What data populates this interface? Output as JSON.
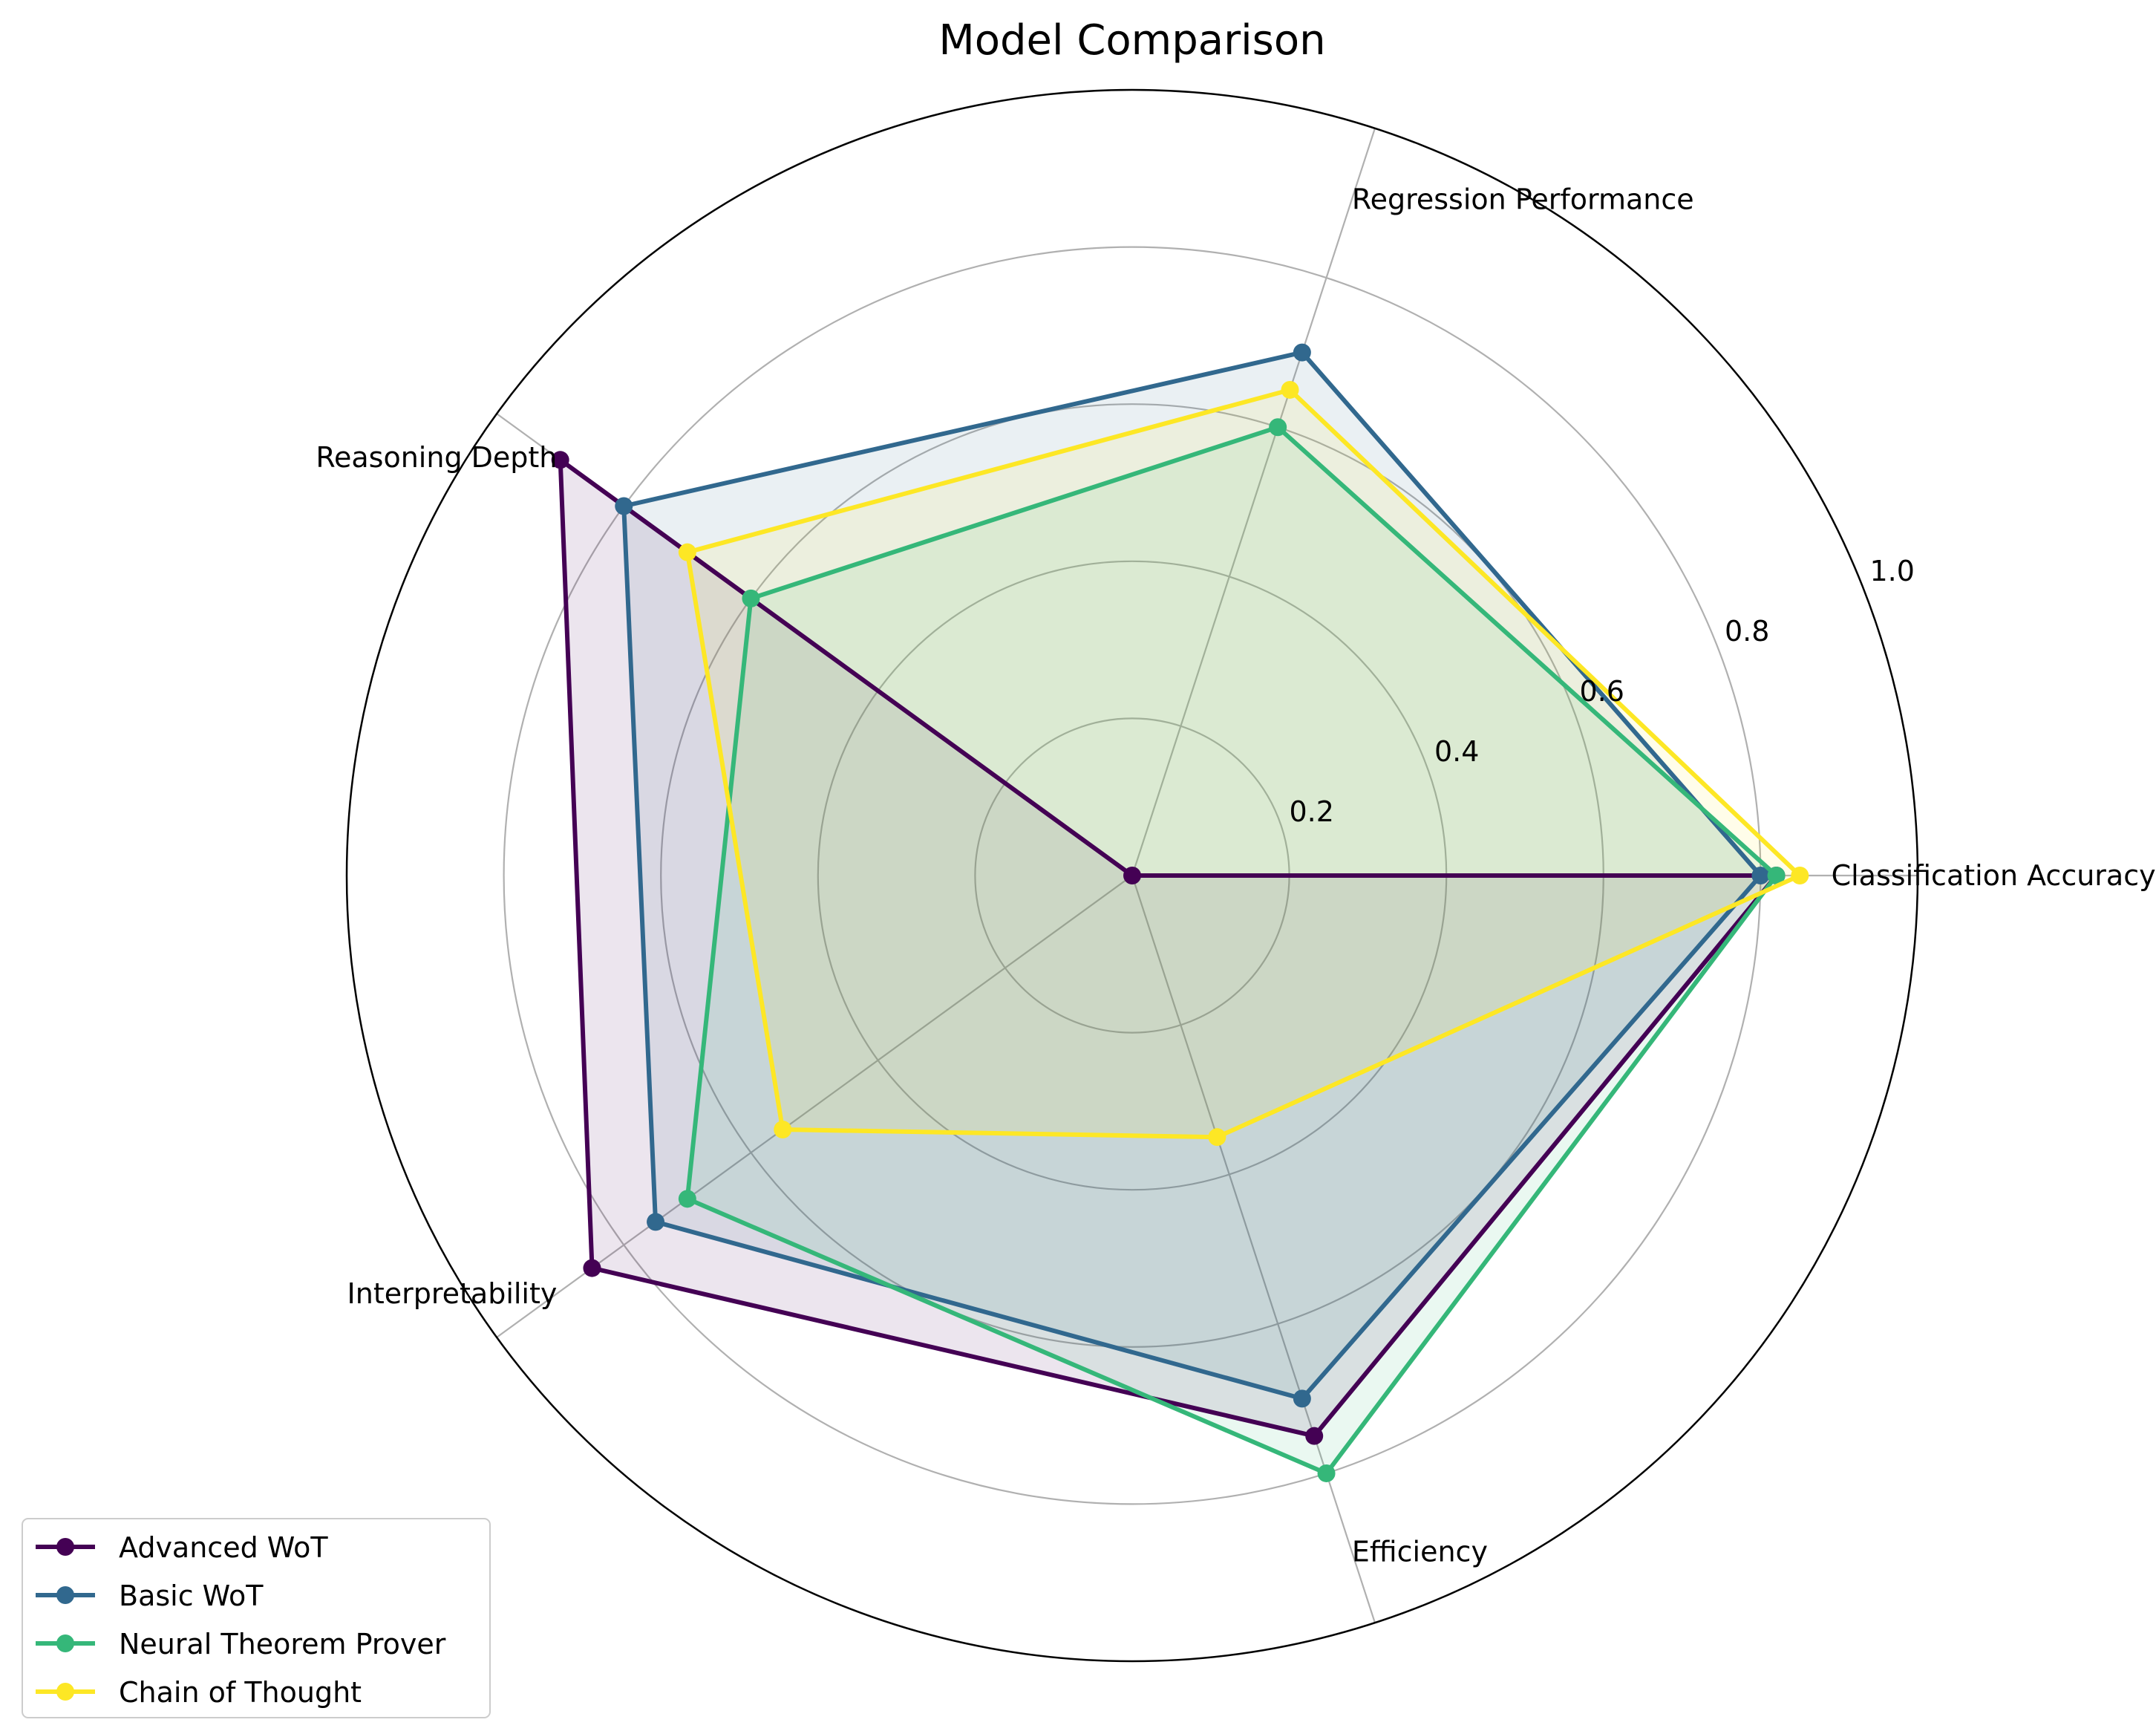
{
  "chart_data": {
    "type": "radar",
    "title": "Model Comparison",
    "axes": [
      "Classification Accuracy",
      "Regression Performance",
      "Reasoning Depth",
      "Interpretability",
      "Efficiency"
    ],
    "rlim": [
      0,
      1.0
    ],
    "radial_ticks": [
      "0.2",
      "0.4",
      "0.6",
      "0.8",
      "1.0"
    ],
    "grid": true,
    "legend_position": "lower-left",
    "series": [
      {
        "name": "Advanced WoT",
        "values": [
          0.82,
          0.0,
          0.9,
          0.85,
          0.75
        ],
        "color": "#440154"
      },
      {
        "name": "Basic WoT",
        "values": [
          0.8,
          0.7,
          0.8,
          0.75,
          0.7
        ],
        "color": "#31688e"
      },
      {
        "name": "Neural Theorem Prover",
        "values": [
          0.82,
          0.6,
          0.6,
          0.7,
          0.8
        ],
        "color": "#35b779"
      },
      {
        "name": "Chain of Thought",
        "values": [
          0.85,
          0.65,
          0.7,
          0.55,
          0.35
        ],
        "color": "#fde725"
      }
    ]
  }
}
